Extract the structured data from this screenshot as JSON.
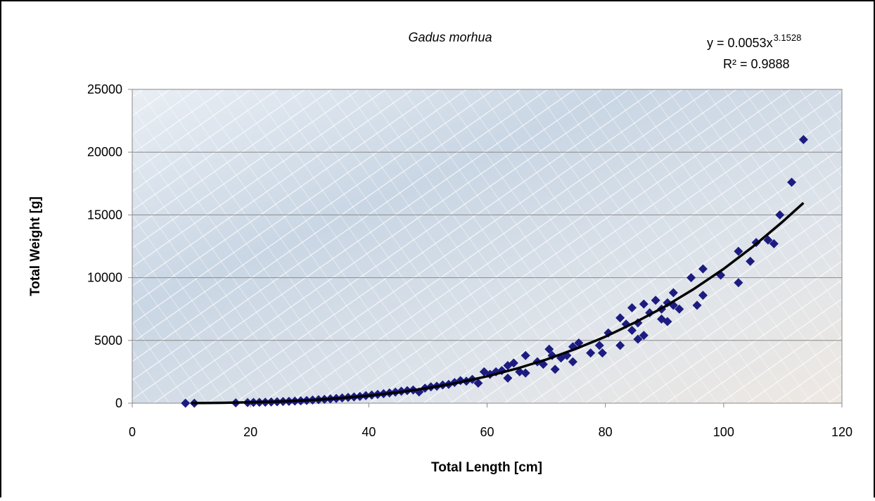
{
  "chart_data": {
    "type": "scatter",
    "title": "Gadus morhua",
    "equation": "y = 0.0053x",
    "equation_exponent": "3.1528",
    "r_squared": "R² = 0.9888",
    "x_label": "Total Length [cm]",
    "y_label": "Total Weight [g]",
    "xlim": [
      0,
      120
    ],
    "xticks": [
      0,
      20,
      40,
      60,
      80,
      100,
      120
    ],
    "ylim": [
      0,
      25000
    ],
    "yticks": [
      0,
      5000,
      10000,
      15000,
      20000,
      25000
    ],
    "grid": true,
    "series": [
      {
        "color": "#1c1c80",
        "x": [
          9,
          10.5,
          17.5,
          19.5,
          20.5,
          21.5,
          22.5,
          23.5,
          24.5,
          25.5,
          26.5,
          27.5,
          28.5,
          29.5,
          30.5,
          31.5,
          32.5,
          33.5,
          34.5,
          35.5,
          36.5,
          37.5,
          38.5,
          39.5,
          40.5,
          41.5,
          42.5,
          43.5,
          44.5,
          45.5,
          46.5,
          47.5,
          48.5,
          49.5,
          50.5,
          51.5,
          52.5,
          53.5,
          54.5,
          55.5,
          56.5,
          57.5,
          58.5,
          59.5,
          60.5,
          61.5,
          62.5,
          63.5,
          63.5,
          64.5,
          65.5,
          66.5,
          66.5,
          68.5,
          69.5,
          70.5,
          71,
          71.5,
          72.5,
          73.5,
          74.5,
          74.5,
          75.5,
          77.5,
          79,
          79.5,
          80.5,
          82.5,
          82.5,
          83.5,
          84.5,
          84.5,
          85.5,
          85.5,
          86.5,
          86.5,
          87.5,
          88.5,
          89.5,
          89.5,
          90.5,
          90.5,
          91.5,
          91.5,
          92.5,
          94.5,
          95.5,
          96.5,
          96.5,
          99.5,
          102.5,
          102.5,
          104.5,
          105.5,
          107.5,
          108.5,
          109.5,
          111.5,
          113.5
        ],
        "values": [
          0,
          0,
          30,
          50,
          60,
          70,
          80,
          100,
          110,
          130,
          150,
          170,
          190,
          220,
          250,
          280,
          310,
          340,
          380,
          420,
          460,
          500,
          540,
          600,
          650,
          700,
          760,
          820,
          880,
          950,
          1000,
          1050,
          900,
          1200,
          1300,
          1350,
          1450,
          1500,
          1650,
          1800,
          1750,
          1900,
          1600,
          2500,
          2300,
          2500,
          2600,
          3000,
          2000,
          3200,
          2500,
          3800,
          2400,
          3300,
          3100,
          4300,
          3800,
          2700,
          3600,
          3800,
          3300,
          4500,
          4800,
          4000,
          4600,
          4000,
          5600,
          4600,
          6800,
          6300,
          7600,
          5800,
          5100,
          6400,
          7900,
          5400,
          7200,
          8200,
          7500,
          6700,
          6500,
          8000,
          8800,
          7800,
          7500,
          10000,
          7800,
          10700,
          8600,
          10200,
          12100,
          9600,
          11300,
          12800,
          13000,
          12700,
          15000,
          17600,
          21000
        ]
      }
    ],
    "trendline": {
      "color": "#000000",
      "x": [
        10,
        15,
        20,
        25,
        30,
        35,
        40,
        45,
        50,
        55,
        60,
        65,
        70,
        75,
        80,
        85,
        90,
        95,
        100,
        105,
        110,
        113.5
      ],
      "values": [
        7.5,
        27,
        67,
        136,
        241,
        391,
        596,
        864,
        1204,
        1625,
        2140,
        2754,
        3476,
        4330,
        5300,
        6430,
        7680,
        9110,
        10700,
        12490,
        14470,
        15960
      ]
    }
  }
}
